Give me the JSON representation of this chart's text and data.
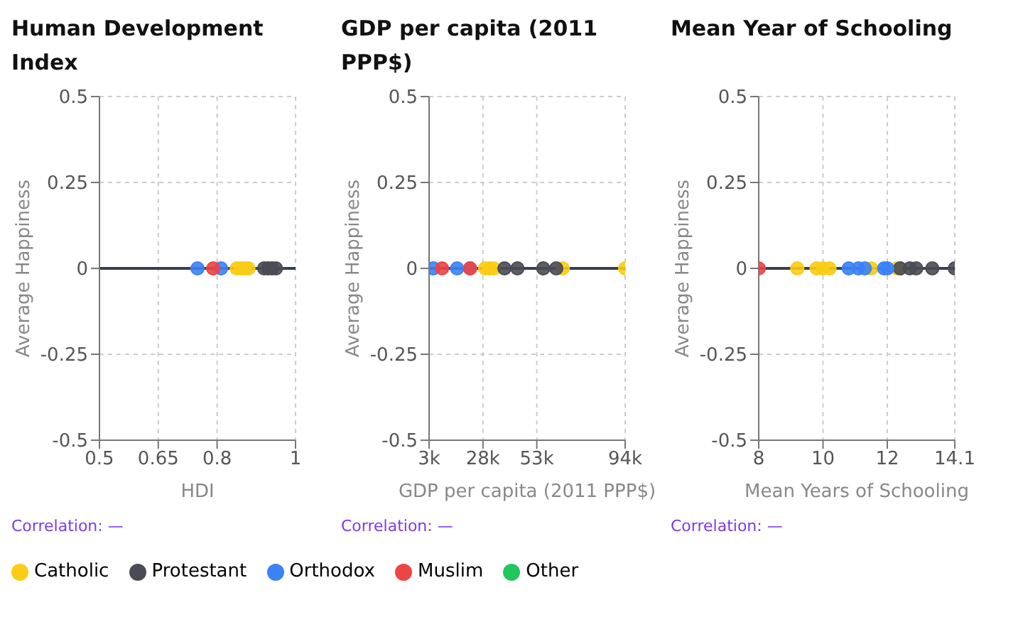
{
  "chart_data": [
    {
      "type": "scatter",
      "title": "Human Development Index",
      "xlabel": "HDI",
      "ylabel": "Average Happiness",
      "xlim": [
        0.5,
        1
      ],
      "xticks": [
        0.5,
        0.65,
        0.8,
        1
      ],
      "ylim": [
        -0.5,
        0.5
      ],
      "yticks": [
        -0.5,
        -0.25,
        0,
        0.25,
        0.5
      ],
      "grid": true,
      "legend": "bottom",
      "ref_lines": [
        {
          "axis": "y",
          "value": 0,
          "color": "#334155"
        }
      ],
      "annotations": [
        "Correlation: —"
      ],
      "series": [
        {
          "name": "Catholic",
          "color": "#facc15",
          "x": [
            0.85,
            0.86,
            0.87,
            0.88
          ],
          "values": [
            0,
            0,
            0,
            0
          ]
        },
        {
          "name": "Protestant",
          "color": "#4b4b55",
          "x": [
            0.92,
            0.93,
            0.94,
            0.95
          ],
          "values": [
            0,
            0,
            0,
            0
          ]
        },
        {
          "name": "Orthodox",
          "color": "#3b82f6",
          "x": [
            0.75,
            0.81
          ],
          "values": [
            0,
            0
          ]
        },
        {
          "name": "Muslim",
          "color": "#ef4444",
          "x": [
            0.79
          ],
          "values": [
            0
          ]
        },
        {
          "name": "Other",
          "color": "#22c55e"
        }
      ]
    },
    {
      "type": "scatter",
      "title": "GDP per capita (2011 PPP$)",
      "xlabel": "GDP per capita (2011 PPP$)",
      "ylabel": "Average Happiness",
      "xlim": [
        3000,
        94000
      ],
      "xticks": [
        {
          "value": 3000,
          "label": "3k"
        },
        {
          "value": 28000,
          "label": "28k"
        },
        {
          "value": 53000,
          "label": "53k"
        },
        {
          "value": 94000,
          "label": "94k"
        }
      ],
      "ylim": [
        -0.5,
        0.5
      ],
      "yticks": [
        -0.5,
        -0.25,
        0,
        0.25,
        0.5
      ],
      "grid": true,
      "ref_lines": [
        {
          "axis": "y",
          "value": 0,
          "color": "#334155"
        }
      ],
      "annotations": [
        "Correlation: —"
      ],
      "series": [
        {
          "color": "#facc15",
          "x": [
            29000,
            31000,
            33000,
            65000,
            94000
          ],
          "values": [
            0,
            0,
            0,
            0,
            0
          ]
        },
        {
          "color": "#4b4b55",
          "x": [
            38000,
            44000,
            56000,
            62000
          ],
          "values": [
            0,
            0,
            0,
            0
          ]
        },
        {
          "color": "#3b82f6",
          "x": [
            5000,
            16000,
            22000
          ],
          "values": [
            0,
            0,
            0
          ]
        },
        {
          "color": "#ef4444",
          "x": [
            9000,
            22000
          ],
          "values": [
            0,
            0
          ]
        }
      ]
    },
    {
      "type": "scatter",
      "title": "Mean Year of Schooling",
      "xlabel": "Mean Years of Schooling",
      "ylabel": "Average Happiness",
      "xlim": [
        8,
        14.1
      ],
      "xticks": [
        8,
        10,
        12,
        14.1
      ],
      "ylim": [
        -0.5,
        0.5
      ],
      "yticks": [
        -0.5,
        -0.25,
        0,
        0.25,
        0.5
      ],
      "grid": true,
      "ref_lines": [
        {
          "axis": "y",
          "value": 0,
          "color": "#334155"
        }
      ],
      "annotations": [
        "Correlation: —"
      ],
      "series": [
        {
          "color": "#facc15",
          "x": [
            9.2,
            9.8,
            10.0,
            10.2,
            11.5,
            12.3
          ],
          "values": [
            0,
            0,
            0,
            0,
            0,
            0
          ]
        },
        {
          "color": "#4b4b55",
          "x": [
            12.4,
            12.7,
            12.9,
            13.4,
            14.1
          ],
          "values": [
            0,
            0,
            0,
            0,
            0
          ]
        },
        {
          "color": "#3b82f6",
          "x": [
            10.8,
            11.1,
            11.3,
            11.9,
            12.0
          ],
          "values": [
            0,
            0,
            0,
            0,
            0
          ]
        },
        {
          "color": "#ef4444",
          "x": [
            8
          ],
          "values": [
            0
          ]
        }
      ]
    }
  ]
}
